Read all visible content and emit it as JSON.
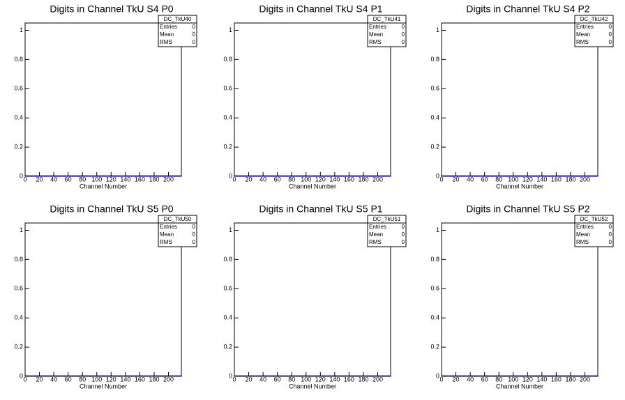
{
  "chart_data": [
    {
      "type": "histogram",
      "title": "Digits in Channel TkU S4 P0",
      "x_label": "Channel Number",
      "xlim": [
        0,
        218
      ],
      "xticks": [
        0,
        20,
        40,
        60,
        80,
        100,
        120,
        140,
        160,
        180,
        200
      ],
      "ylim": [
        0,
        1.05
      ],
      "yticks": [
        0,
        0.2,
        0.4,
        0.6,
        0.8,
        1
      ],
      "color": "#000080",
      "stats": {
        "name": "DC_TkU40",
        "rows": [
          {
            "label": "Entries",
            "value": 0
          },
          {
            "label": "Mean",
            "value": 0
          },
          {
            "label": "RMS",
            "value": 0
          }
        ]
      }
    },
    {
      "type": "histogram",
      "title": "Digits in Channel TkU S4 P1",
      "x_label": "Channel Number",
      "xlim": [
        0,
        218
      ],
      "xticks": [
        0,
        20,
        40,
        60,
        80,
        100,
        120,
        140,
        160,
        180,
        200
      ],
      "ylim": [
        0,
        1.05
      ],
      "yticks": [
        0,
        0.2,
        0.4,
        0.6,
        0.8,
        1
      ],
      "color": "#000080",
      "stats": {
        "name": "DC_TkU41",
        "rows": [
          {
            "label": "Entries",
            "value": 0
          },
          {
            "label": "Mean",
            "value": 0
          },
          {
            "label": "RMS",
            "value": 0
          }
        ]
      }
    },
    {
      "type": "histogram",
      "title": "Digits in Channel TkU S4 P2",
      "x_label": "Channel Number",
      "xlim": [
        0,
        218
      ],
      "xticks": [
        0,
        20,
        40,
        60,
        80,
        100,
        120,
        140,
        160,
        180,
        200
      ],
      "ylim": [
        0,
        1.05
      ],
      "yticks": [
        0,
        0.2,
        0.4,
        0.6,
        0.8,
        1
      ],
      "color": "#000080",
      "stats": {
        "name": "DC_TkU42",
        "rows": [
          {
            "label": "Entries",
            "value": 0
          },
          {
            "label": "Mean",
            "value": 0
          },
          {
            "label": "RMS",
            "value": 0
          }
        ]
      }
    },
    {
      "type": "histogram",
      "title": "Digits in Channel TkU S5 P0",
      "x_label": "Channel Number",
      "xlim": [
        0,
        218
      ],
      "xticks": [
        0,
        20,
        40,
        60,
        80,
        100,
        120,
        140,
        160,
        180,
        200
      ],
      "ylim": [
        0,
        1.05
      ],
      "yticks": [
        0,
        0.2,
        0.4,
        0.6,
        0.8,
        1
      ],
      "color": "#000080",
      "stats": {
        "name": "DC_TkU50",
        "rows": [
          {
            "label": "Entries",
            "value": 0
          },
          {
            "label": "Mean",
            "value": 0
          },
          {
            "label": "RMS",
            "value": 0
          }
        ]
      }
    },
    {
      "type": "histogram",
      "title": "Digits in Channel TkU S5 P1",
      "x_label": "Channel Number",
      "xlim": [
        0,
        218
      ],
      "xticks": [
        0,
        20,
        40,
        60,
        80,
        100,
        120,
        140,
        160,
        180,
        200
      ],
      "ylim": [
        0,
        1.05
      ],
      "yticks": [
        0,
        0.2,
        0.4,
        0.6,
        0.8,
        1
      ],
      "color": "#000080",
      "stats": {
        "name": "DC_TkU51",
        "rows": [
          {
            "label": "Entries",
            "value": 0
          },
          {
            "label": "Mean",
            "value": 0
          },
          {
            "label": "RMS",
            "value": 0
          }
        ]
      }
    },
    {
      "type": "histogram",
      "title": "Digits in Channel TkU S5 P2",
      "x_label": "Channel Number",
      "xlim": [
        0,
        218
      ],
      "xticks": [
        0,
        20,
        40,
        60,
        80,
        100,
        120,
        140,
        160,
        180,
        200
      ],
      "ylim": [
        0,
        1.05
      ],
      "yticks": [
        0,
        0.2,
        0.4,
        0.6,
        0.8,
        1
      ],
      "color": "#000080",
      "stats": {
        "name": "DC_TkU52",
        "rows": [
          {
            "label": "Entries",
            "value": 0
          },
          {
            "label": "Mean",
            "value": 0
          },
          {
            "label": "RMS",
            "value": 0
          }
        ]
      }
    }
  ]
}
